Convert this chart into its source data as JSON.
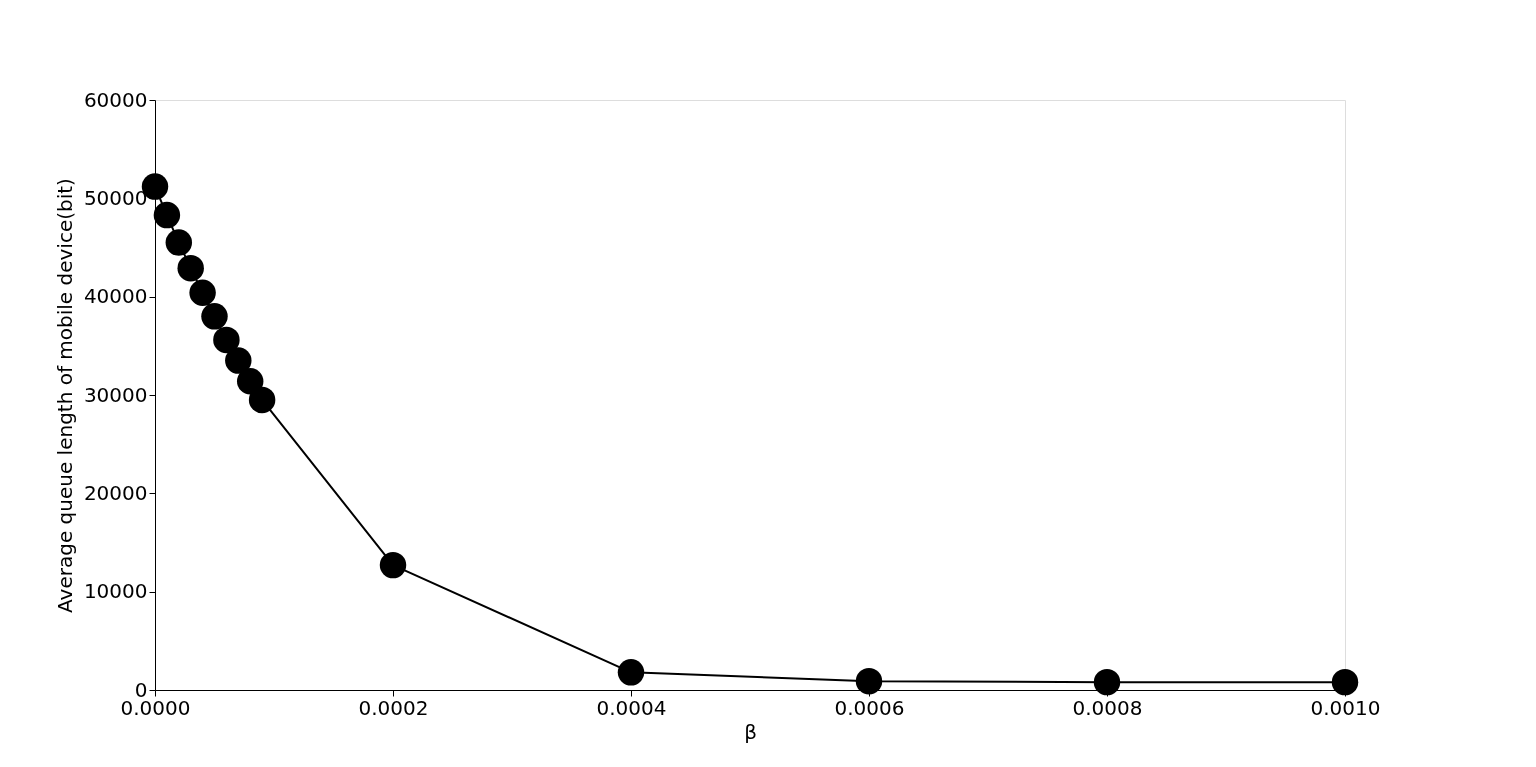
{
  "chart_data": {
    "type": "line",
    "xlabel": "β",
    "ylabel": "Average queue length of mobile device(bit)",
    "x": [
      0,
      1e-05,
      2e-05,
      3e-05,
      4e-05,
      5e-05,
      6e-05,
      7e-05,
      8e-05,
      9e-05,
      0.0002,
      0.0004,
      0.0006,
      0.0008,
      0.001
    ],
    "series": [
      {
        "color": "#000000",
        "values": [
          51200,
          48300,
          45500,
          42900,
          40400,
          38000,
          35600,
          33500,
          31400,
          29500,
          12700,
          1800,
          900,
          800,
          800
        ]
      }
    ],
    "xlim": [
      0,
      0.001
    ],
    "xticks": [
      {
        "value": 0,
        "label": "0.0000"
      },
      {
        "value": 0.0002,
        "label": "0.0002"
      },
      {
        "value": 0.0004,
        "label": "0.0004"
      },
      {
        "value": 0.0006,
        "label": "0.0006"
      },
      {
        "value": 0.0008,
        "label": "0.0008"
      },
      {
        "value": 0.001,
        "label": "0.0010"
      }
    ],
    "ylim": [
      0,
      60000
    ],
    "yticks": [
      0,
      10000,
      20000,
      30000,
      40000,
      50000,
      60000
    ],
    "grid": false,
    "marker": "circle",
    "line_style": "solid"
  }
}
